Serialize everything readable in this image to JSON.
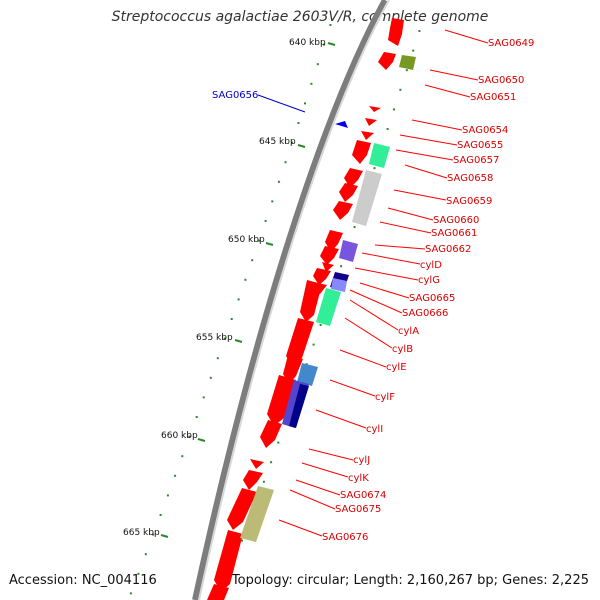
{
  "title": "Streptococcus agalactiae 2603V/R, complete genome",
  "footer": {
    "accession": "Accession: NC_004116",
    "topology": "Topology: circular; Length: 2,160,267 bp; Genes: 2,225"
  },
  "colors": {
    "backbone": "#7d7d7d",
    "gene": "#ff0000",
    "label": "#d90000",
    "label_left": "#0000cc",
    "tick": "#2a8a2a"
  },
  "kbp_ticks": [
    "640 kbp",
    "645 kbp",
    "650 kbp",
    "655 kbp",
    "660 kbp",
    "665 kbp"
  ],
  "gene_labels": [
    "SAG0649",
    "SAG0650",
    "SAG0651",
    "SAG0654",
    "SAG0655",
    "SAG0657",
    "SAG0658",
    "SAG0659",
    "SAG0660",
    "SAG0661",
    "SAG0662",
    "cylD",
    "cylG",
    "SAG0665",
    "SAG0666",
    "cylA",
    "cylB",
    "cylE",
    "cylF",
    "cylI",
    "cylJ",
    "cylK",
    "SAG0674",
    "SAG0675",
    "SAG0676"
  ],
  "left_label": "SAG0656"
}
